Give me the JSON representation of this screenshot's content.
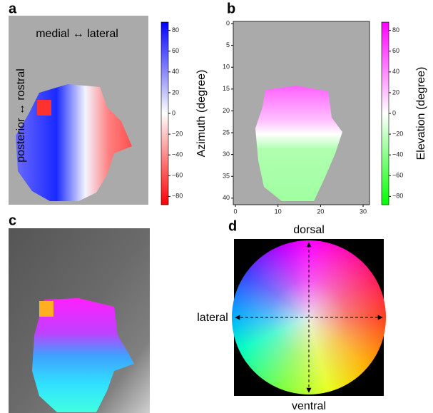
{
  "panel_a": {
    "label": "a",
    "annotation_top": "medial ↔ lateral",
    "annotation_left": "posterior ↔ rostral",
    "colorbar": {
      "label": "Azimuth (degree)",
      "colors": [
        "#ff0000",
        "#ffffff",
        "#0000ff"
      ],
      "lim": [
        -88,
        88
      ],
      "ticks": [
        {
          "value": -80,
          "label": "−80"
        },
        {
          "value": -60,
          "label": "−60"
        },
        {
          "value": -40,
          "label": "−40"
        },
        {
          "value": -20,
          "label": "−20"
        },
        0,
        20,
        40,
        60,
        80
      ]
    }
  },
  "panel_b": {
    "label": "b",
    "xlim": [
      -0.5,
      31.5
    ],
    "xticks": [
      0,
      10,
      20,
      30
    ],
    "ylim": [
      -0.5,
      41.5
    ],
    "y_inverted": true,
    "yticks": [
      0,
      5,
      10,
      15,
      20,
      25,
      30,
      35,
      40
    ],
    "colorbar": {
      "label": "Elevation (degree)",
      "colors": [
        "#00ff00",
        "#ffffff",
        "#ff00ff"
      ],
      "lim": [
        -88,
        88
      ],
      "ticks": [
        {
          "value": -80,
          "label": "−80"
        },
        {
          "value": -60,
          "label": "−60"
        },
        {
          "value": -40,
          "label": "−40"
        },
        {
          "value": -20,
          "label": "−20"
        },
        0,
        20,
        40,
        60,
        80
      ]
    }
  },
  "panel_c": {
    "label": "c"
  },
  "panel_d": {
    "label": "d",
    "top": "dorsal",
    "bottom": "ventral",
    "left": "lateral"
  }
}
